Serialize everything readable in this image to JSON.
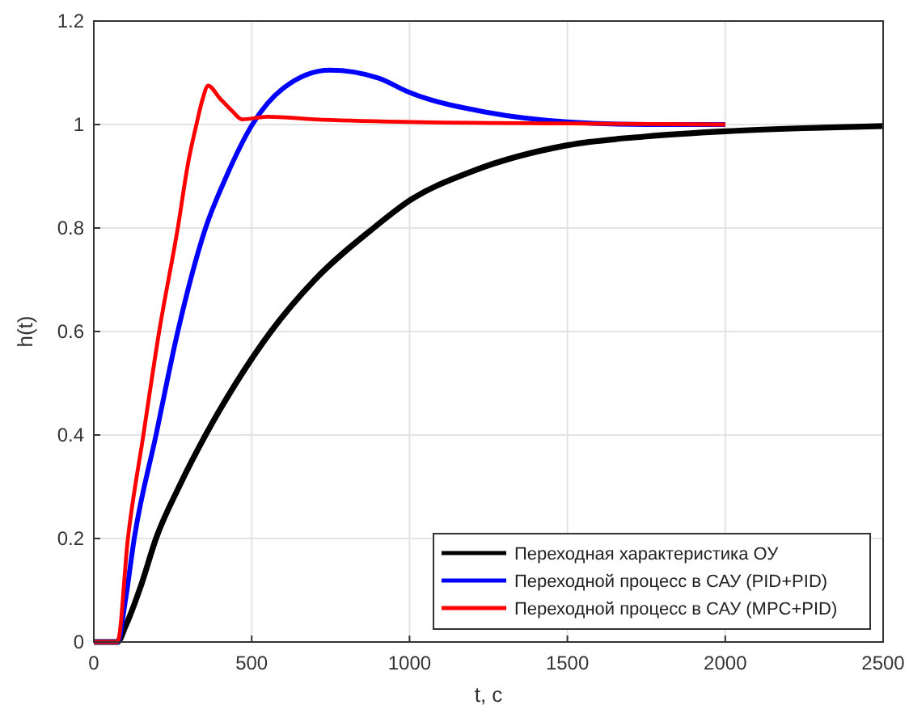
{
  "chart_data": {
    "type": "line",
    "xlabel": "t, c",
    "ylabel": "h(t)",
    "xlim": [
      0,
      2500
    ],
    "ylim": [
      0,
      1.2
    ],
    "xticks": [
      0,
      500,
      1000,
      1500,
      2000,
      2500
    ],
    "yticks": [
      0,
      0.2,
      0.4,
      0.6,
      0.8,
      1,
      1.2
    ],
    "grid": true,
    "legend": "bottom right",
    "marker": "none",
    "line_style": "solid",
    "series": [
      {
        "name": "Переходная характеристика ОУ",
        "color": "#000000",
        "x": [
          0,
          75,
          100,
          150,
          197,
          270,
          354,
          450,
          561,
          700,
          886,
          1000,
          1200,
          1500,
          1750,
          2000,
          2250,
          2500
        ],
        "values": [
          0,
          0,
          0.03,
          0.11,
          0.2,
          0.3,
          0.4,
          0.5,
          0.6,
          0.7,
          0.8,
          0.853,
          0.91,
          0.96,
          0.977,
          0.987,
          0.993,
          0.997
        ]
      },
      {
        "name": "Переходной процесс в САУ (PID+PID)",
        "color": "#0000ff",
        "x": [
          0,
          75,
          100,
          128,
          197,
          266,
          354,
          420,
          502,
          600,
          748,
          900,
          1000,
          1250,
          1500,
          1750,
          2000
        ],
        "values": [
          0,
          0,
          0.08,
          0.2,
          0.4,
          0.6,
          0.8,
          0.9,
          1,
          1.07,
          1.105,
          1.09,
          1.062,
          1.023,
          1.005,
          1,
          1
        ]
      },
      {
        "name": "Переходной процесс в САУ (MPC+PID)",
        "color": "#ff0000",
        "x": [
          0,
          75,
          108,
          157,
          207,
          266,
          300,
          325,
          345,
          362,
          400,
          440,
          469,
          550,
          700,
          1000,
          1500,
          2000
        ],
        "values": [
          0,
          0,
          0.2,
          0.4,
          0.6,
          0.8,
          0.93,
          1,
          1.05,
          1.075,
          1.05,
          1.025,
          1.01,
          1.015,
          1.01,
          1.005,
          1.002,
          1
        ]
      }
    ]
  }
}
